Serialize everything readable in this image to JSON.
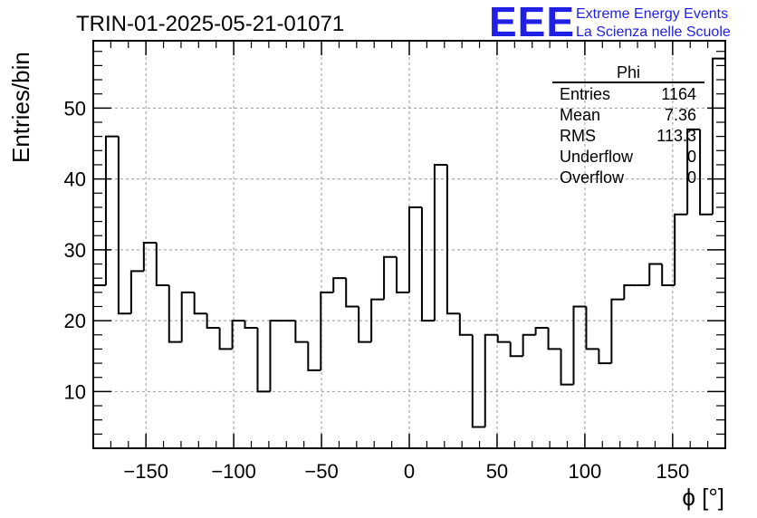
{
  "header": {
    "run_title": "TRIN-01-2025-05-21-01071",
    "logo_text": "EEE",
    "logo_line1": "Extreme Energy Events",
    "logo_line2": "La Scienza nelle Scuole"
  },
  "stats_box": {
    "title": "Phi",
    "rows": [
      {
        "label": "Entries",
        "value": "1164"
      },
      {
        "label": "Mean",
        "value": "7.36"
      },
      {
        "label": "RMS",
        "value": "113.3"
      },
      {
        "label": "Underflow",
        "value": "0"
      },
      {
        "label": "Overflow",
        "value": "0"
      }
    ]
  },
  "chart_data": {
    "type": "bar",
    "histogram": true,
    "xlabel": "ϕ [°]",
    "ylabel": "Entries/bin",
    "xlim": [
      -180,
      180
    ],
    "ylim": [
      2,
      59.5
    ],
    "bin_width": 7.2,
    "bin_edges_start": -180,
    "values": [
      25,
      46,
      21,
      27,
      31,
      25,
      17,
      24,
      21,
      19,
      16,
      20,
      19,
      10,
      20,
      20,
      17,
      13,
      24,
      26,
      22,
      17,
      23,
      29,
      24,
      36,
      20,
      42,
      21,
      18,
      5,
      18,
      17,
      15,
      18,
      19,
      16,
      11,
      22,
      16,
      14,
      23,
      25,
      25,
      28,
      25,
      35,
      47,
      35,
      57
    ],
    "x_ticks": [
      -150,
      -100,
      -50,
      0,
      50,
      100,
      150
    ],
    "x_tick_labels": [
      "−150",
      "−100",
      "−50",
      "0",
      "50",
      "100",
      "150"
    ],
    "y_ticks": [
      10,
      20,
      30,
      40,
      50
    ],
    "y_tick_labels": [
      "10",
      "20",
      "30",
      "40",
      "50"
    ],
    "grid": true,
    "line_color": "#000000",
    "grid_color": "#9a9a9a",
    "logo_color": "#1f1fe8"
  }
}
